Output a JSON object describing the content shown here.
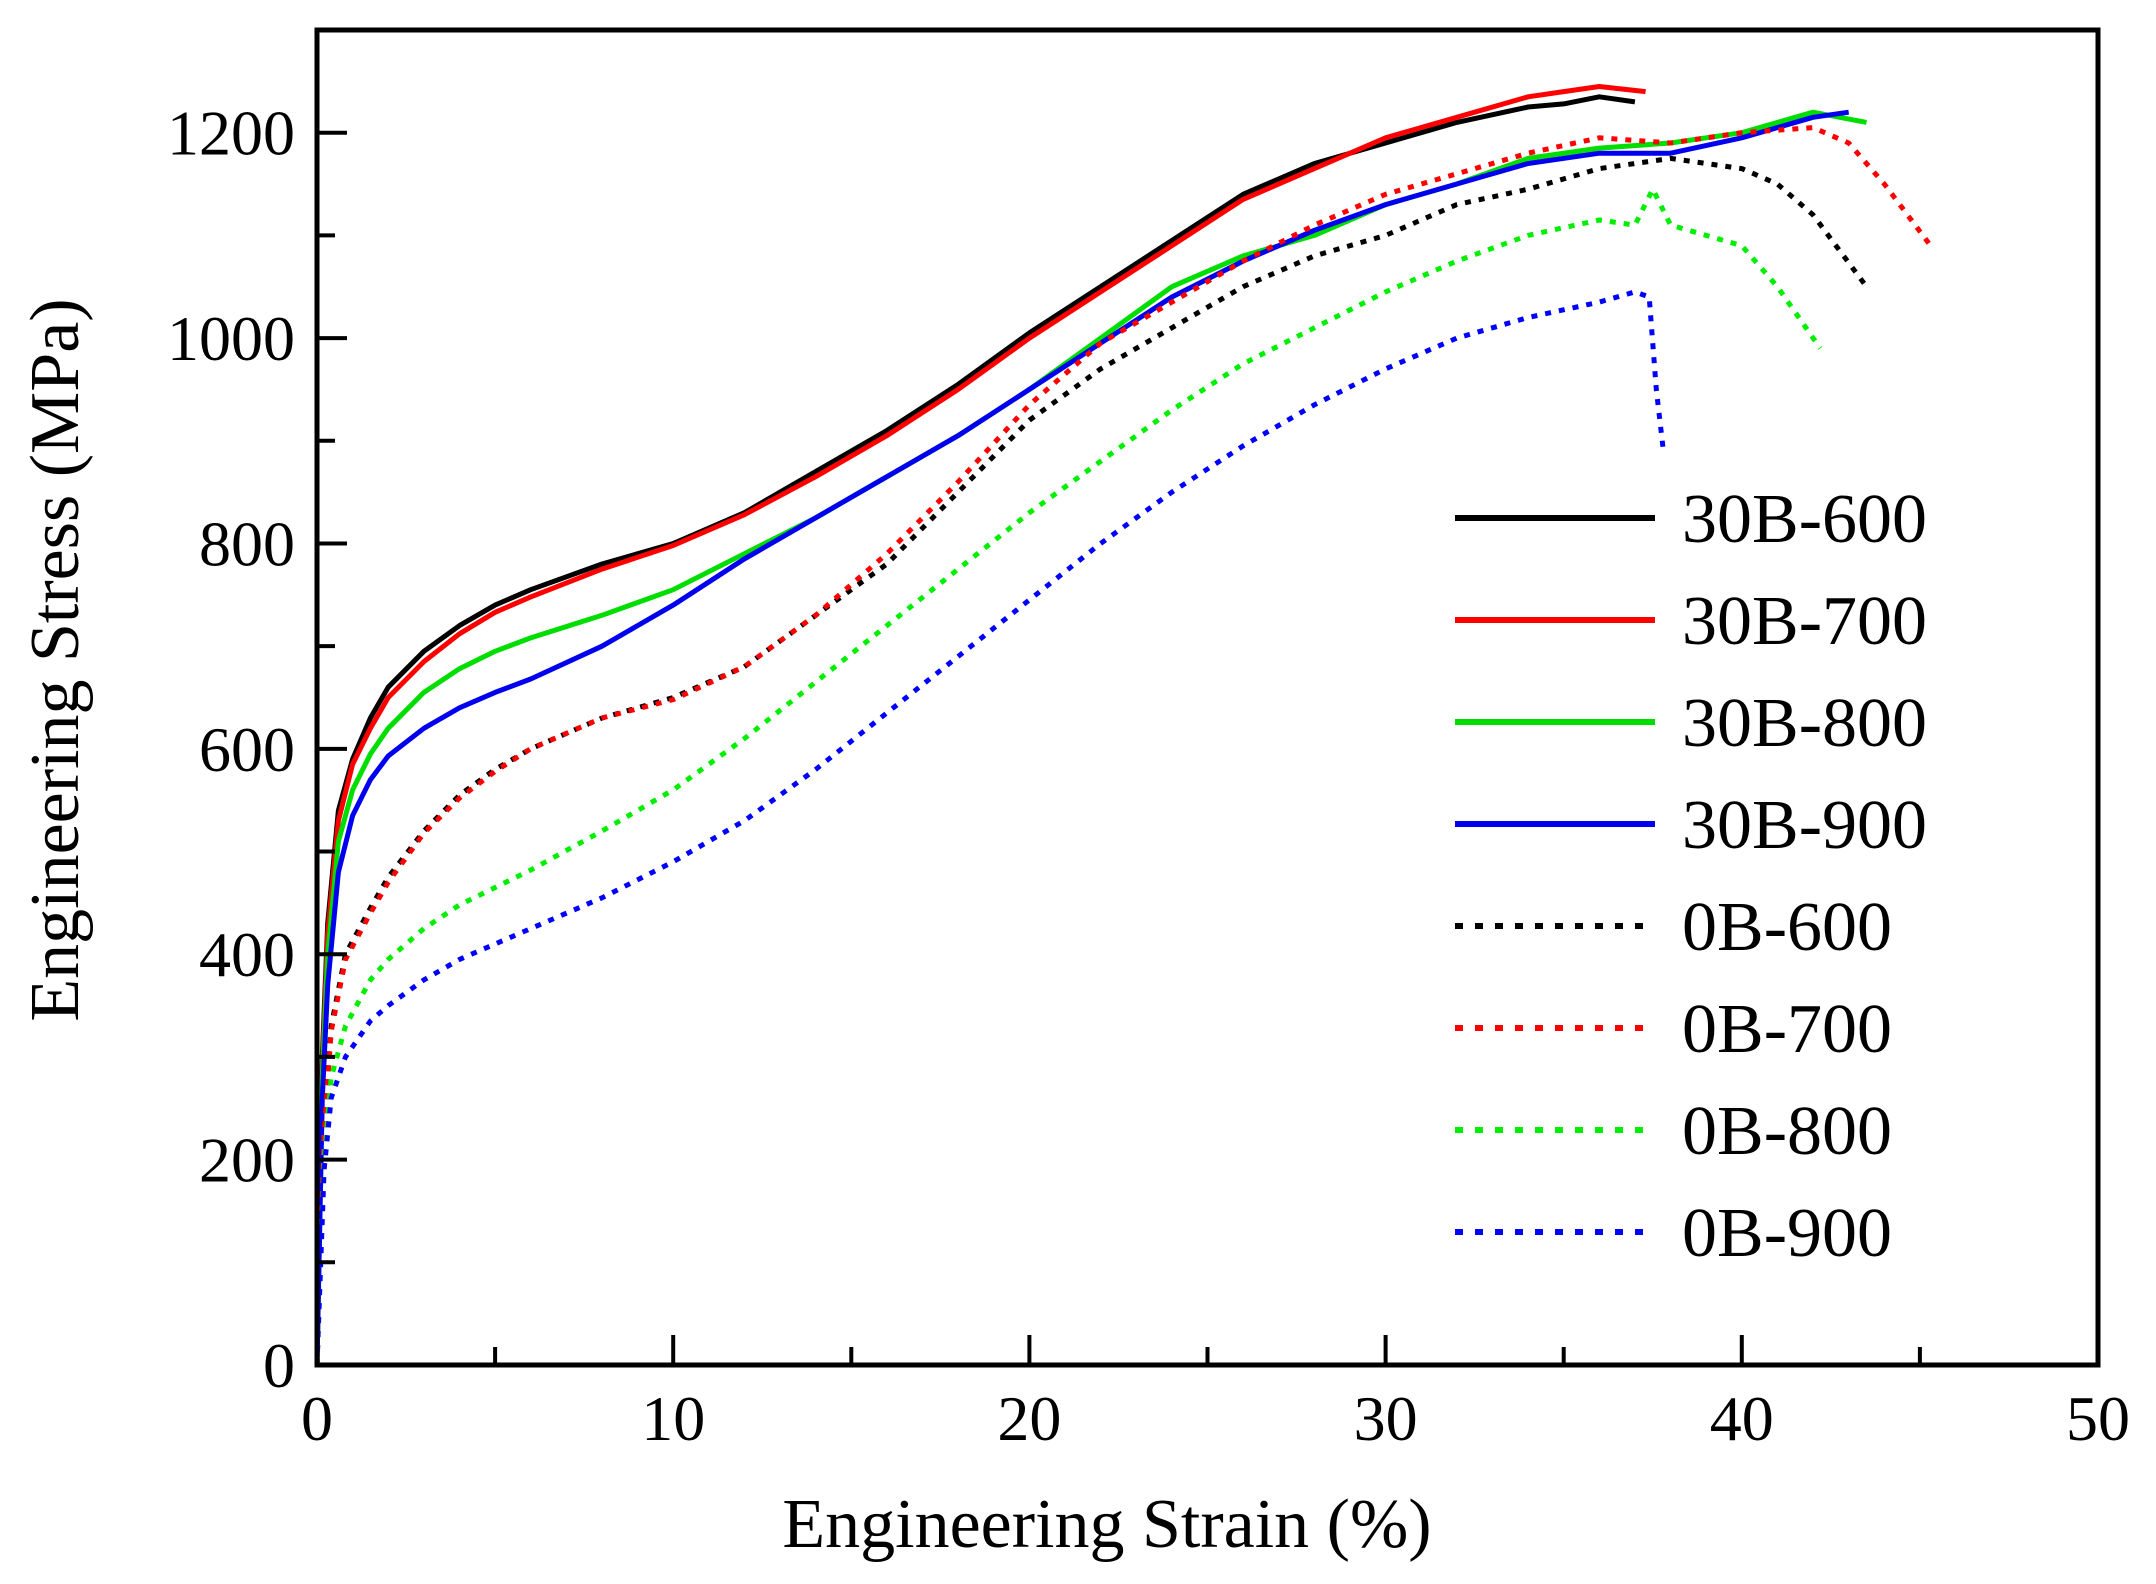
{
  "chart_data": {
    "type": "line",
    "title": "",
    "xlabel": "Engineering Strain (%)",
    "ylabel": "Engineering Stress (MPa)",
    "xlim": [
      0,
      50
    ],
    "ylim": [
      0,
      1300
    ],
    "xticks": [
      0,
      10,
      20,
      30,
      40,
      50
    ],
    "xtick_labels": [
      "0",
      "10",
      "20",
      "30",
      "40",
      "50"
    ],
    "yticks": [
      0,
      200,
      400,
      600,
      800,
      1000,
      1200
    ],
    "ytick_labels": [
      "0",
      "200",
      "400",
      "600",
      "800",
      "1000",
      "1200"
    ],
    "grid": false,
    "legend_position": "right",
    "series": [
      {
        "name": "30B-600",
        "color": "#000000",
        "style": "solid",
        "x": [
          0,
          0.15,
          0.3,
          0.6,
          1,
          1.5,
          2,
          3,
          4,
          5,
          6,
          8,
          10,
          12,
          14,
          16,
          18,
          20,
          22,
          24,
          26,
          28,
          30,
          32,
          34,
          35,
          36,
          37
        ],
        "y": [
          0,
          300,
          430,
          540,
          590,
          630,
          660,
          695,
          720,
          740,
          755,
          780,
          800,
          830,
          870,
          910,
          955,
          1005,
          1050,
          1095,
          1140,
          1170,
          1190,
          1210,
          1225,
          1228,
          1235,
          1230
        ]
      },
      {
        "name": "30B-700",
        "color": "#ff0000",
        "style": "solid",
        "x": [
          0,
          0.15,
          0.3,
          0.6,
          1,
          1.5,
          2,
          3,
          4,
          5,
          6,
          8,
          10,
          12,
          14,
          16,
          18,
          20,
          22,
          24,
          26,
          28,
          30,
          32,
          34,
          35,
          36,
          37.3
        ],
        "y": [
          0,
          290,
          420,
          530,
          585,
          620,
          650,
          685,
          712,
          733,
          748,
          775,
          798,
          828,
          865,
          905,
          950,
          1000,
          1045,
          1090,
          1135,
          1165,
          1195,
          1215,
          1235,
          1240,
          1245,
          1240
        ]
      },
      {
        "name": "30B-800",
        "color": "#00dd00",
        "style": "solid",
        "x": [
          0,
          0.15,
          0.3,
          0.6,
          1,
          1.5,
          2,
          3,
          4,
          5,
          6,
          8,
          10,
          12,
          14,
          16,
          18,
          20,
          22,
          24,
          26,
          28,
          30,
          32,
          34,
          36,
          38,
          40,
          42,
          43.5
        ],
        "y": [
          0,
          280,
          400,
          510,
          560,
          595,
          620,
          655,
          678,
          695,
          708,
          730,
          755,
          790,
          825,
          865,
          905,
          950,
          1000,
          1050,
          1080,
          1100,
          1130,
          1150,
          1175,
          1185,
          1190,
          1200,
          1220,
          1210
        ]
      },
      {
        "name": "30B-900",
        "color": "#0000ee",
        "style": "solid",
        "x": [
          0,
          0.15,
          0.3,
          0.6,
          1,
          1.5,
          2,
          3,
          4,
          5,
          6,
          8,
          10,
          12,
          14,
          16,
          18,
          20,
          22,
          24,
          26,
          28,
          30,
          32,
          34,
          36,
          38,
          40,
          42,
          43
        ],
        "y": [
          0,
          260,
          370,
          480,
          535,
          570,
          593,
          620,
          640,
          655,
          668,
          700,
          740,
          785,
          825,
          865,
          905,
          950,
          995,
          1040,
          1075,
          1105,
          1130,
          1150,
          1170,
          1180,
          1180,
          1195,
          1215,
          1220
        ]
      },
      {
        "name": "0B-600",
        "color": "#000000",
        "style": "dotted",
        "x": [
          0,
          0.2,
          0.4,
          0.8,
          1.5,
          2,
          3,
          4,
          5,
          6,
          8,
          10,
          12,
          14,
          16,
          18,
          20,
          22,
          24,
          26,
          28,
          30,
          32,
          34,
          36,
          38,
          40,
          41,
          42,
          43.5
        ],
        "y": [
          0,
          230,
          330,
          400,
          445,
          475,
          520,
          555,
          580,
          600,
          630,
          650,
          680,
          730,
          780,
          850,
          920,
          970,
          1010,
          1050,
          1080,
          1100,
          1130,
          1145,
          1165,
          1175,
          1165,
          1150,
          1120,
          1050
        ]
      },
      {
        "name": "0B-700",
        "color": "#ff0000",
        "style": "dotted",
        "x": [
          0,
          0.2,
          0.4,
          0.8,
          1.5,
          2,
          3,
          4,
          5,
          6,
          8,
          10,
          12,
          14,
          16,
          18,
          20,
          22,
          24,
          26,
          28,
          30,
          32,
          34,
          36,
          38,
          40,
          42,
          43,
          44,
          45.3
        ],
        "y": [
          0,
          225,
          325,
          395,
          440,
          470,
          518,
          552,
          578,
          600,
          630,
          648,
          680,
          730,
          790,
          860,
          935,
          995,
          1035,
          1075,
          1110,
          1140,
          1160,
          1180,
          1195,
          1190,
          1200,
          1205,
          1190,
          1150,
          1090
        ]
      },
      {
        "name": "0B-800",
        "color": "#00ee00",
        "style": "dotted",
        "x": [
          0,
          0.2,
          0.4,
          0.8,
          1.5,
          2,
          3,
          4,
          5,
          6,
          8,
          10,
          12,
          14,
          16,
          18,
          20,
          22,
          24,
          26,
          28,
          30,
          32,
          34,
          36,
          37,
          37.5,
          38,
          40,
          41,
          42.2
        ],
        "y": [
          0,
          200,
          280,
          330,
          375,
          395,
          425,
          448,
          465,
          482,
          520,
          560,
          610,
          665,
          720,
          775,
          830,
          880,
          930,
          975,
          1010,
          1045,
          1075,
          1100,
          1115,
          1110,
          1145,
          1110,
          1090,
          1050,
          990
        ]
      },
      {
        "name": "0B-900",
        "color": "#0000ff",
        "style": "dotted",
        "x": [
          0,
          0.2,
          0.4,
          0.8,
          1.5,
          2,
          3,
          4,
          5,
          6,
          8,
          10,
          12,
          14,
          16,
          18,
          20,
          22,
          24,
          26,
          28,
          30,
          32,
          34,
          36,
          37,
          37.4,
          37.6,
          37.8
        ],
        "y": [
          0,
          190,
          260,
          300,
          335,
          350,
          375,
          395,
          410,
          425,
          455,
          490,
          530,
          580,
          635,
          690,
          745,
          800,
          850,
          895,
          935,
          970,
          1000,
          1020,
          1035,
          1045,
          1040,
          950,
          890
        ]
      }
    ]
  }
}
